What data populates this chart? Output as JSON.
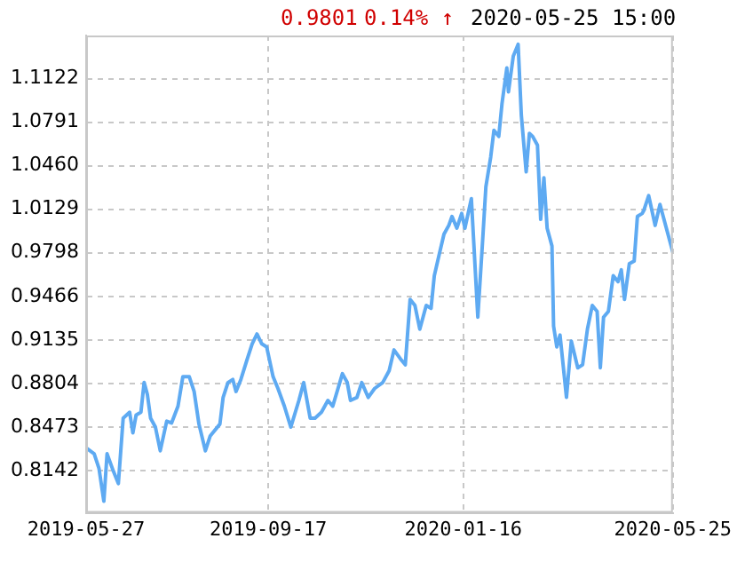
{
  "chart_data": {
    "type": "line",
    "annotations": [
      "0.9801",
      "0.14% ↑",
      "2020-05-25 15:00"
    ],
    "x": [
      "2019-05-27",
      "2019-06-01",
      "2019-06-04",
      "2019-06-07",
      "2019-06-09",
      "2019-06-13",
      "2019-06-16",
      "2019-06-19",
      "2019-06-23",
      "2019-06-25",
      "2019-06-27",
      "2019-06-30",
      "2019-07-02",
      "2019-07-04",
      "2019-07-06",
      "2019-07-09",
      "2019-07-12",
      "2019-07-16",
      "2019-07-19",
      "2019-07-23",
      "2019-07-26",
      "2019-07-30",
      "2019-08-02",
      "2019-08-05",
      "2019-08-09",
      "2019-08-12",
      "2019-08-18",
      "2019-08-20",
      "2019-08-23",
      "2019-08-26",
      "2019-08-28",
      "2019-08-31",
      "2019-09-04",
      "2019-09-07",
      "2019-09-10",
      "2019-09-13",
      "2019-09-16",
      "2019-09-20",
      "2019-09-23",
      "2019-09-27",
      "2019-10-01",
      "2019-10-06",
      "2019-10-09",
      "2019-10-13",
      "2019-10-16",
      "2019-10-20",
      "2019-10-24",
      "2019-10-27",
      "2019-11-02",
      "2019-11-05",
      "2019-11-07",
      "2019-11-11",
      "2019-11-14",
      "2019-11-18",
      "2019-11-22",
      "2019-11-27",
      "2019-12-01",
      "2019-12-04",
      "2019-12-08",
      "2019-12-11",
      "2019-12-14",
      "2019-12-17",
      "2019-12-20",
      "2019-12-24",
      "2019-12-27",
      "2019-12-29",
      "2020-01-01",
      "2020-01-04",
      "2020-01-07",
      "2020-01-09",
      "2020-01-12",
      "2020-01-15",
      "2020-01-17",
      "2020-01-21",
      "2020-01-25",
      "2020-01-28",
      "2020-01-30",
      "2020-02-02",
      "2020-02-04",
      "2020-02-07",
      "2020-02-09",
      "2020-02-12",
      "2020-02-13",
      "2020-02-16",
      "2020-02-19",
      "2020-02-21",
      "2020-02-24",
      "2020-02-26",
      "2020-02-28",
      "2020-03-02",
      "2020-03-04",
      "2020-03-06",
      "2020-03-08",
      "2020-03-11",
      "2020-03-12",
      "2020-03-14",
      "2020-03-16",
      "2020-03-20",
      "2020-03-23",
      "2020-03-27",
      "2020-03-30",
      "2020-04-02",
      "2020-04-05",
      "2020-04-08",
      "2020-04-10",
      "2020-04-12",
      "2020-04-15",
      "2020-04-18",
      "2020-04-21",
      "2020-04-23",
      "2020-04-25",
      "2020-04-28",
      "2020-05-01",
      "2020-05-03",
      "2020-05-06",
      "2020-05-07",
      "2020-05-10",
      "2020-05-12",
      "2020-05-14",
      "2020-05-17",
      "2020-05-19",
      "2020-05-25"
    ],
    "series": [
      {
        "color": "#5eaaf2",
        "values": [
          0.8314,
          0.8269,
          0.8157,
          0.7908,
          0.8269,
          0.8134,
          0.8043,
          0.854,
          0.8585,
          0.8428,
          0.8563,
          0.8585,
          0.8811,
          0.872,
          0.854,
          0.8472,
          0.8292,
          0.8517,
          0.8503,
          0.8631,
          0.8855,
          0.8855,
          0.8743,
          0.8495,
          0.8292,
          0.8405,
          0.8495,
          0.8698,
          0.8811,
          0.8834,
          0.8743,
          0.8834,
          0.8991,
          0.9105,
          0.918,
          0.9105,
          0.9082,
          0.8855,
          0.8766,
          0.8631,
          0.8472,
          0.8675,
          0.8811,
          0.854,
          0.854,
          0.8585,
          0.8675,
          0.8631,
          0.8878,
          0.8811,
          0.8675,
          0.8698,
          0.8811,
          0.8698,
          0.8766,
          0.8811,
          0.8901,
          0.9059,
          0.8991,
          0.8946,
          0.9443,
          0.9397,
          0.9217,
          0.9397,
          0.9375,
          0.9623,
          0.9782,
          0.9939,
          1.0006,
          1.0074,
          0.9985,
          1.0097,
          0.9985,
          1.0209,
          0.9308,
          0.9894,
          1.03,
          1.0526,
          1.0729,
          1.0683,
          1.0932,
          1.1203,
          1.1022,
          1.1293,
          1.1383,
          1.0842,
          1.0413,
          1.0706,
          1.0683,
          1.0616,
          1.0052,
          1.0368,
          0.9985,
          0.9849,
          0.924,
          0.9082,
          0.9172,
          0.8698,
          0.9126,
          0.8923,
          0.8946,
          0.9217,
          0.9397,
          0.9352,
          0.8923,
          0.9308,
          0.9352,
          0.9623,
          0.9578,
          0.9668,
          0.9443,
          0.9714,
          0.9735,
          1.0074,
          1.0097,
          1.012,
          1.0232,
          1.012,
          1.0006,
          1.0165,
          1.0074,
          0.9801
        ]
      }
    ],
    "xlim": [
      "2019-05-27",
      "2020-05-25"
    ],
    "xticks": [
      "2019-05-27",
      "2019-09-17",
      "2020-01-16",
      "2020-05-25"
    ],
    "ylim": [
      0.782,
      1.145
    ],
    "yticks": [
      0.8142,
      0.8473,
      0.8804,
      0.9135,
      0.9466,
      0.9798,
      1.0129,
      {
        "value": 1.046,
        "label": "1.0460"
      },
      1.0791,
      1.1122
    ],
    "grid": true,
    "marker": "none",
    "line_style": "solid",
    "legend": false
  }
}
